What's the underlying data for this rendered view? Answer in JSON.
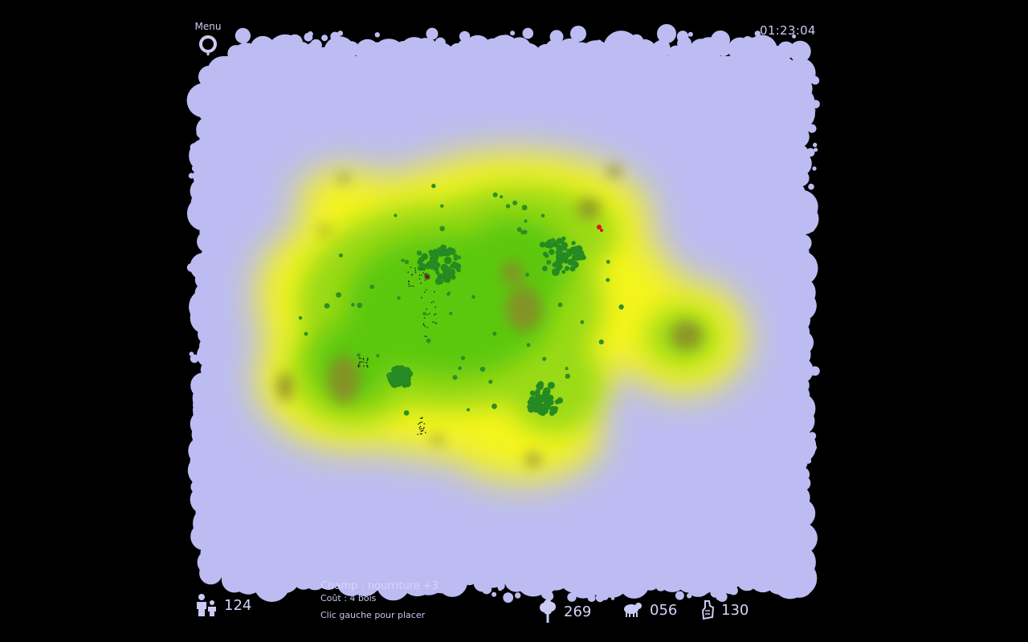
{
  "menu": {
    "label": "Menu",
    "icon": "menu-ring-icon"
  },
  "clock": {
    "time": "01:23:04"
  },
  "stats": {
    "population": {
      "icon": "population-icon",
      "value": "124"
    },
    "wood": {
      "icon": "tree-icon",
      "value": "269"
    },
    "food": {
      "icon": "sheep-icon",
      "value": "056"
    },
    "stone": {
      "icon": "stone-hand-icon",
      "value": "130"
    }
  },
  "info": {
    "title": "Champ : nourriture +3",
    "cost": "Coût : 4 bois",
    "hint": "Clic gauche pour placer"
  },
  "colors": {
    "background": "#000000",
    "water": "#bcbcf2",
    "sand": "#f4f41e",
    "grass": "#6cd00c",
    "forest": "#268a22",
    "mud": "#8a8a2a",
    "enemy": "#e01010"
  }
}
